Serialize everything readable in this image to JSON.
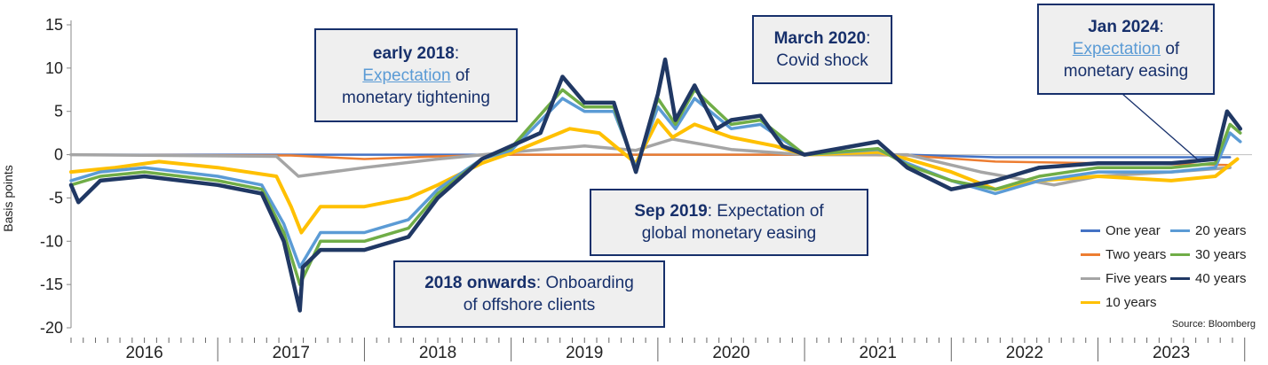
{
  "chart_data": {
    "type": "line",
    "title": "",
    "ylabel": "Basis points",
    "xlabel": "",
    "ylim": [
      -20,
      15
    ],
    "yticks": [
      15,
      10,
      5,
      0,
      -5,
      -10,
      -15,
      -20
    ],
    "xlim": [
      2016.0,
      2024.05
    ],
    "year_labels": [
      "2016",
      "2017",
      "2018",
      "2019",
      "2020",
      "2021",
      "2022",
      "2023"
    ],
    "grid": false,
    "legend_position": "bottom-right",
    "source": "Source: Bloomberg",
    "series": [
      {
        "name": "One year",
        "color": "#4472c4",
        "x": [
          2016.0,
          2017.5,
          2018.5,
          2019.0,
          2020.0,
          2021.0,
          2021.7,
          2022.3,
          2023.0,
          2023.9
        ],
        "y": [
          0,
          0,
          0,
          0,
          0,
          0,
          0,
          -0.3,
          -0.3,
          -0.3
        ]
      },
      {
        "name": "Two years",
        "color": "#ed7d31",
        "x": [
          2016.0,
          2017.5,
          2018.0,
          2018.5,
          2019.0,
          2020.0,
          2021.0,
          2021.7,
          2022.3,
          2023.0,
          2023.9
        ],
        "y": [
          0,
          -0.1,
          -0.5,
          -0.2,
          0,
          0,
          0,
          -0.1,
          -0.8,
          -1.0,
          -1.2
        ]
      },
      {
        "name": "Five years",
        "color": "#a5a5a5",
        "x": [
          2016.0,
          2017.4,
          2017.55,
          2018.0,
          2018.5,
          2019.0,
          2019.5,
          2019.85,
          2020.1,
          2020.5,
          2021.0,
          2021.7,
          2022.2,
          2022.7,
          2023.0,
          2023.5,
          2023.9
        ],
        "y": [
          0,
          -0.2,
          -2.5,
          -1.5,
          -0.5,
          0.3,
          1.0,
          0.5,
          1.8,
          0.6,
          0,
          0,
          -2.0,
          -3.5,
          -2.5,
          -2.0,
          -1.5
        ]
      },
      {
        "name": "10 years",
        "color": "#ffc000",
        "x": [
          2016.0,
          2016.3,
          2016.6,
          2017.0,
          2017.4,
          2017.5,
          2017.57,
          2017.7,
          2018.0,
          2018.3,
          2018.5,
          2018.8,
          2019.0,
          2019.4,
          2019.6,
          2019.85,
          2020.0,
          2020.1,
          2020.25,
          2020.5,
          2020.8,
          2021.0,
          2021.5,
          2021.7,
          2022.0,
          2022.3,
          2022.6,
          2023.0,
          2023.5,
          2023.8,
          2023.95
        ],
        "y": [
          -2,
          -1.5,
          -0.8,
          -1.5,
          -2.5,
          -6.0,
          -9.0,
          -6.0,
          -6.0,
          -5.0,
          -3.5,
          -1.0,
          0.2,
          3.0,
          2.5,
          -1.0,
          4.0,
          2.0,
          3.5,
          2.0,
          1.0,
          0,
          0.3,
          -0.5,
          -2.0,
          -4.0,
          -3.0,
          -2.5,
          -3.0,
          -2.5,
          -0.5
        ]
      },
      {
        "name": "20 years",
        "color": "#5b9bd5",
        "x": [
          2016.0,
          2016.2,
          2016.5,
          2017.0,
          2017.3,
          2017.45,
          2017.56,
          2017.7,
          2018.0,
          2018.3,
          2018.5,
          2018.8,
          2019.0,
          2019.35,
          2019.5,
          2019.7,
          2019.85,
          2020.0,
          2020.12,
          2020.25,
          2020.5,
          2020.7,
          2021.0,
          2021.5,
          2021.7,
          2022.0,
          2022.3,
          2022.6,
          2023.0,
          2023.5,
          2023.8,
          2023.9,
          2023.97
        ],
        "y": [
          -3,
          -2,
          -1.5,
          -2.5,
          -3.5,
          -8.0,
          -13.0,
          -9.0,
          -9.0,
          -7.5,
          -4.0,
          -0.5,
          0.5,
          6.5,
          5.0,
          5.0,
          -1.5,
          5.5,
          3.0,
          6.5,
          3.0,
          3.5,
          0,
          0.6,
          -1.0,
          -3.0,
          -4.5,
          -3.0,
          -2.0,
          -2.0,
          -1.5,
          2.5,
          1.5
        ]
      },
      {
        "name": "30 years",
        "color": "#70ad47",
        "x": [
          2016.0,
          2016.2,
          2016.5,
          2017.0,
          2017.3,
          2017.45,
          2017.56,
          2017.7,
          2018.0,
          2018.3,
          2018.5,
          2018.8,
          2019.0,
          2019.35,
          2019.5,
          2019.7,
          2019.85,
          2020.0,
          2020.12,
          2020.25,
          2020.5,
          2020.7,
          2021.0,
          2021.5,
          2021.7,
          2022.0,
          2022.3,
          2022.6,
          2023.0,
          2023.5,
          2023.8,
          2023.9,
          2023.97
        ],
        "y": [
          -3.5,
          -2.5,
          -2.0,
          -3.0,
          -4.0,
          -9.0,
          -15.0,
          -10.0,
          -10.0,
          -8.5,
          -4.5,
          -0.5,
          0.8,
          7.5,
          5.5,
          5.5,
          -1.8,
          6.5,
          3.5,
          7.5,
          3.5,
          4.0,
          0,
          0.7,
          -1.2,
          -3.0,
          -4.0,
          -2.5,
          -1.5,
          -1.5,
          -1.0,
          3.5,
          2.5
        ]
      },
      {
        "name": "40 years",
        "color": "#203864",
        "x": [
          2016.0,
          2016.05,
          2016.2,
          2016.5,
          2017.0,
          2017.3,
          2017.45,
          2017.56,
          2017.58,
          2017.7,
          2018.0,
          2018.3,
          2018.5,
          2018.8,
          2019.0,
          2019.2,
          2019.35,
          2019.5,
          2019.7,
          2019.85,
          2020.0,
          2020.05,
          2020.12,
          2020.25,
          2020.4,
          2020.5,
          2020.7,
          2020.85,
          2021.0,
          2021.5,
          2021.7,
          2022.0,
          2022.3,
          2022.6,
          2023.0,
          2023.5,
          2023.8,
          2023.88,
          2023.97
        ],
        "y": [
          -3.5,
          -5.5,
          -3.0,
          -2.5,
          -3.5,
          -4.5,
          -10.0,
          -18.0,
          -13.0,
          -11.0,
          -11.0,
          -9.5,
          -5.0,
          -0.5,
          1.0,
          2.5,
          9.0,
          6.0,
          6.0,
          -2.0,
          7.0,
          11.0,
          4.0,
          8.0,
          3.0,
          4.0,
          4.5,
          1.0,
          0,
          1.5,
          -1.5,
          -4.0,
          -3.0,
          -1.5,
          -1.0,
          -1.0,
          -0.5,
          5.0,
          3.0
        ]
      }
    ]
  },
  "callouts": [
    {
      "id": "early-2018",
      "bold": "early 2018",
      "sep": ":",
      "link": "Expectation",
      "rest": " of",
      "line2": "monetary tightening"
    },
    {
      "id": "march-2020",
      "bold": "March 2020",
      "sep": ":",
      "line2": "Covid shock"
    },
    {
      "id": "jan-2024",
      "bold": "Jan 2024",
      "sep": ":",
      "link": "Expectation",
      "rest": " of",
      "line2": "monetary easing"
    },
    {
      "id": "sep-2019",
      "bold": "Sep 2019",
      "sep": ": Expectation of",
      "line2": "global monetary easing"
    },
    {
      "id": "2018-onwards",
      "bold": "2018 onwards",
      "sep": ": Onboarding",
      "line2": "of offshore clients"
    }
  ],
  "legend": [
    {
      "label": "One year",
      "color": "#4472c4"
    },
    {
      "label": "20 years",
      "color": "#5b9bd5"
    },
    {
      "label": "Two years",
      "color": "#ed7d31"
    },
    {
      "label": "30 years",
      "color": "#70ad47"
    },
    {
      "label": "Five years",
      "color": "#a5a5a5"
    },
    {
      "label": "40 years",
      "color": "#203864"
    },
    {
      "label": "10 years",
      "color": "#ffc000"
    }
  ]
}
